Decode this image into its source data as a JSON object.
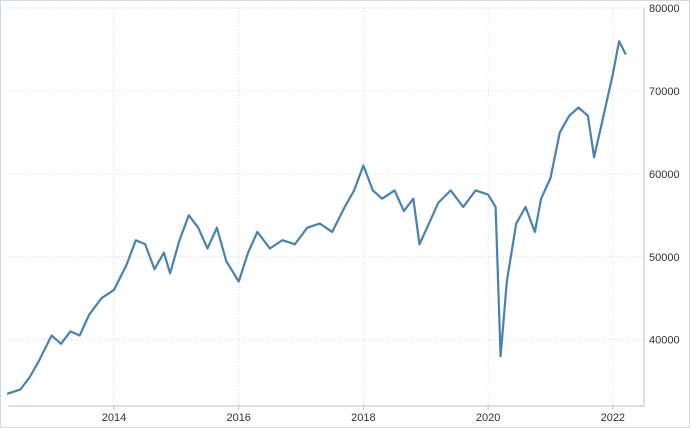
{
  "chart_data": {
    "type": "line",
    "title": "",
    "xlabel": "",
    "ylabel": "",
    "x_tick_labels": [
      "2014",
      "2016",
      "2018",
      "2020",
      "2022"
    ],
    "y_tick_labels": [
      "40000",
      "50000",
      "60000",
      "70000",
      "80000"
    ],
    "xlim": [
      2012.3,
      2022.5
    ],
    "ylim": [
      32000,
      80000
    ],
    "grid": true,
    "legend": "none",
    "colors": {
      "line": "#4682b4",
      "grid": "#d6d6d6",
      "frame": "#c9dbe9",
      "text": "#333333"
    },
    "series": [
      {
        "x": [
          2012.3,
          2012.5,
          2012.65,
          2012.8,
          2013.0,
          2013.15,
          2013.3,
          2013.45,
          2013.6,
          2013.8,
          2014.0,
          2014.2,
          2014.35,
          2014.5,
          2014.65,
          2014.8,
          2014.9,
          2015.05,
          2015.2,
          2015.35,
          2015.5,
          2015.65,
          2015.8,
          2016.0,
          2016.15,
          2016.3,
          2016.5,
          2016.7,
          2016.9,
          2017.1,
          2017.3,
          2017.5,
          2017.7,
          2017.85,
          2018.0,
          2018.15,
          2018.3,
          2018.5,
          2018.65,
          2018.8,
          2018.9,
          2019.05,
          2019.2,
          2019.4,
          2019.6,
          2019.8,
          2020.0,
          2020.12,
          2020.2,
          2020.3,
          2020.45,
          2020.6,
          2020.75,
          2020.85,
          2021.0,
          2021.15,
          2021.3,
          2021.45,
          2021.6,
          2021.7,
          2021.85,
          2022.0,
          2022.1,
          2022.2
        ],
        "y": [
          33500,
          34000,
          35500,
          37500,
          40500,
          39500,
          41000,
          40500,
          43000,
          45000,
          46000,
          49000,
          52000,
          51500,
          48500,
          50500,
          48000,
          52000,
          55000,
          53500,
          51000,
          53500,
          49500,
          47000,
          50500,
          53000,
          51000,
          52000,
          51500,
          53500,
          54000,
          53000,
          56000,
          58000,
          61000,
          58000,
          57000,
          58000,
          55500,
          57000,
          51500,
          54000,
          56500,
          58000,
          56000,
          58000,
          57500,
          56000,
          38000,
          47000,
          54000,
          56000,
          53000,
          57000,
          59500,
          65000,
          67000,
          68000,
          67000,
          62000,
          67000,
          72000,
          76000,
          74500
        ]
      }
    ]
  }
}
